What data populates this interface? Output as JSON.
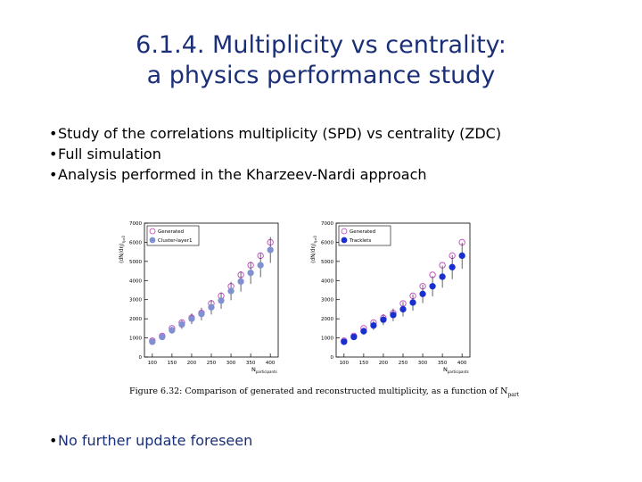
{
  "slide": {
    "title_line1": "6.1.4. Multiplicity vs centrality:",
    "title_line2": "a physics performance study",
    "bullets": [
      "Study of the correlations multiplicity (SPD) vs centrality (ZDC)",
      "Full simulation",
      "Analysis performed in the Kharzeev-Nardi approach"
    ],
    "footer_bullet": "No further update foreseen",
    "bullet_glyph": "•",
    "colors": {
      "title": "#1a2f78",
      "open_marker": "#c040c0",
      "left_filled": "#8090d0",
      "right_filled": "#1a2fd0"
    }
  },
  "figure": {
    "caption_label": "Figure 6.32:",
    "caption_text": "Comparison of generated and reconstructed multiplicity, as a function of N",
    "caption_sub": "part"
  },
  "chart_data": [
    {
      "type": "scatter",
      "xlabel": "N",
      "xlabel_sub": "participants",
      "ylabel": "⟨dN/dη⟩",
      "ylabel_sub": "η=0",
      "xlim": [
        80,
        420
      ],
      "ylim": [
        0,
        7000
      ],
      "xticks": [
        100,
        150,
        200,
        250,
        300,
        350,
        400
      ],
      "yticks": [
        0,
        1000,
        2000,
        3000,
        4000,
        5000,
        6000,
        7000
      ],
      "legend_position": "top-left",
      "series": [
        {
          "name": "Generated",
          "marker": "open-circle",
          "x": [
            100,
            125,
            150,
            175,
            200,
            225,
            250,
            275,
            300,
            325,
            350,
            375,
            400
          ],
          "y": [
            850,
            1100,
            1500,
            1800,
            2050,
            2300,
            2800,
            3200,
            3700,
            4300,
            4800,
            5300,
            6000
          ]
        },
        {
          "name": "Cluster-layer1",
          "marker": "filled-circle",
          "x": [
            100,
            125,
            150,
            175,
            200,
            225,
            250,
            275,
            300,
            325,
            350,
            375,
            400
          ],
          "y": [
            800,
            1050,
            1400,
            1700,
            2000,
            2250,
            2600,
            2950,
            3450,
            3950,
            4400,
            4800,
            5600
          ]
        }
      ]
    },
    {
      "type": "scatter",
      "xlabel": "N",
      "xlabel_sub": "participants",
      "ylabel": "⟨dN/dη⟩",
      "ylabel_sub": "η=0",
      "xlim": [
        80,
        420
      ],
      "ylim": [
        0,
        7000
      ],
      "xticks": [
        100,
        150,
        200,
        250,
        300,
        350,
        400
      ],
      "yticks": [
        0,
        1000,
        2000,
        3000,
        4000,
        5000,
        6000,
        7000
      ],
      "legend_position": "top-left",
      "series": [
        {
          "name": "Generated",
          "marker": "open-circle",
          "x": [
            100,
            125,
            150,
            175,
            200,
            225,
            250,
            275,
            300,
            325,
            350,
            375,
            400
          ],
          "y": [
            850,
            1100,
            1500,
            1800,
            2050,
            2300,
            2800,
            3200,
            3700,
            4300,
            4800,
            5300,
            6000
          ]
        },
        {
          "name": "Tracklets",
          "marker": "filled-circle",
          "x": [
            100,
            125,
            150,
            175,
            200,
            225,
            250,
            275,
            300,
            325,
            350,
            375,
            400
          ],
          "y": [
            800,
            1050,
            1350,
            1650,
            1950,
            2200,
            2500,
            2850,
            3300,
            3700,
            4200,
            4700,
            5300
          ]
        }
      ]
    }
  ]
}
